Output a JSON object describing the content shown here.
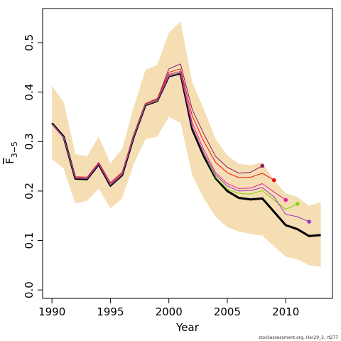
{
  "chart_data": {
    "type": "line",
    "xlabel": "Year",
    "ylabel": "F",
    "ylabel_subscript": "3−5",
    "footer": "stockassessment.org, Her29_2, rt277",
    "x": [
      1990,
      1991,
      1992,
      1993,
      1994,
      1995,
      1996,
      1997,
      1998,
      1999,
      2000,
      2001,
      2002,
      2003,
      2004,
      2005,
      2006,
      2007,
      2008,
      2009,
      2010,
      2011,
      2012,
      2013
    ],
    "band": {
      "color": "#f5deb3",
      "upper": [
        0.413,
        0.38,
        0.275,
        0.27,
        0.31,
        0.256,
        0.285,
        0.37,
        0.445,
        0.455,
        0.52,
        0.543,
        0.42,
        0.365,
        0.305,
        0.272,
        0.255,
        0.252,
        0.258,
        0.222,
        0.195,
        0.188,
        0.17,
        0.178
      ],
      "lower": [
        0.265,
        0.245,
        0.175,
        0.18,
        0.205,
        0.165,
        0.185,
        0.255,
        0.305,
        0.31,
        0.35,
        0.338,
        0.232,
        0.185,
        0.148,
        0.127,
        0.118,
        0.113,
        0.11,
        0.088,
        0.067,
        0.062,
        0.05,
        0.047
      ]
    },
    "series": [
      {
        "color": "#000000",
        "line_width": 3,
        "end_marker": false,
        "values": [
          0.337,
          0.31,
          0.225,
          0.224,
          0.254,
          0.211,
          0.232,
          0.31,
          0.374,
          0.382,
          0.432,
          0.438,
          0.325,
          0.27,
          0.226,
          0.2,
          0.186,
          0.183,
          0.185,
          0.158,
          0.131,
          0.123,
          0.109,
          0.111
        ]
      },
      {
        "color": "#8b1a6b",
        "line_width": 1,
        "end_marker": true,
        "values": [
          0.335,
          0.308,
          0.227,
          0.226,
          0.256,
          0.214,
          0.236,
          0.312,
          0.376,
          0.385,
          0.447,
          0.457,
          0.365,
          0.315,
          0.27,
          0.248,
          0.236,
          0.238,
          0.251,
          null,
          null,
          null,
          null,
          null
        ]
      },
      {
        "color": "#ee1111",
        "line_width": 1,
        "end_marker": true,
        "values": [
          0.336,
          0.309,
          0.229,
          0.228,
          0.258,
          0.217,
          0.238,
          0.313,
          0.377,
          0.387,
          0.44,
          0.447,
          0.352,
          0.3,
          0.258,
          0.237,
          0.227,
          0.228,
          0.236,
          0.222,
          null,
          null,
          null,
          null
        ]
      },
      {
        "color": "#e0209f",
        "line_width": 1,
        "end_marker": true,
        "values": [
          0.335,
          0.308,
          0.228,
          0.226,
          0.256,
          0.215,
          0.236,
          0.311,
          0.375,
          0.384,
          0.436,
          0.442,
          0.338,
          0.283,
          0.237,
          0.215,
          0.205,
          0.206,
          0.215,
          0.198,
          0.182,
          null,
          null,
          null
        ]
      },
      {
        "color": "#7fd600",
        "line_width": 1,
        "end_marker": true,
        "values": [
          0.336,
          0.309,
          0.227,
          0.225,
          0.255,
          0.213,
          0.234,
          0.311,
          0.375,
          0.383,
          0.433,
          0.44,
          0.33,
          0.275,
          0.228,
          0.204,
          0.195,
          0.194,
          0.201,
          0.182,
          0.163,
          0.174,
          null,
          null
        ]
      },
      {
        "color": "#9933cc",
        "line_width": 1,
        "end_marker": true,
        "values": [
          0.336,
          0.309,
          0.226,
          0.225,
          0.255,
          0.212,
          0.233,
          0.31,
          0.374,
          0.382,
          0.432,
          0.439,
          0.33,
          0.276,
          0.233,
          0.21,
          0.2,
          0.201,
          0.207,
          0.188,
          0.153,
          0.148,
          0.138,
          null
        ]
      }
    ],
    "xlim": [
      1989.2,
      2014.0
    ],
    "ylim": [
      -0.017,
      0.569
    ],
    "xticks": [
      1990,
      1995,
      2000,
      2005,
      2010
    ],
    "yticks": [
      {
        "value": 0,
        "label": "0.0"
      },
      0.1,
      0.2,
      0.3,
      0.4,
      0.5
    ]
  }
}
